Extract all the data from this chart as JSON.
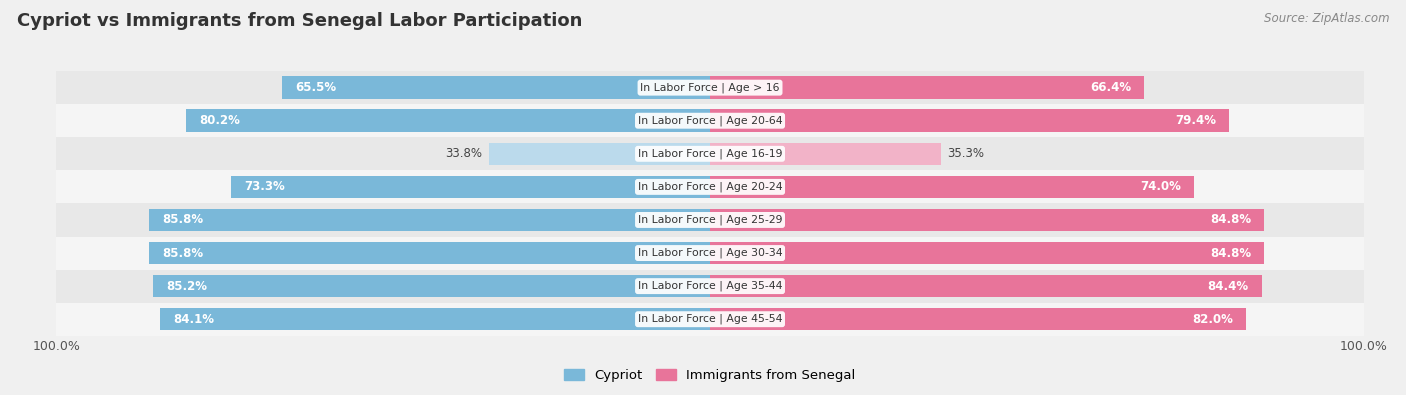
{
  "title": "Cypriot vs Immigrants from Senegal Labor Participation",
  "source": "Source: ZipAtlas.com",
  "categories": [
    "In Labor Force | Age > 16",
    "In Labor Force | Age 20-64",
    "In Labor Force | Age 16-19",
    "In Labor Force | Age 20-24",
    "In Labor Force | Age 25-29",
    "In Labor Force | Age 30-34",
    "In Labor Force | Age 35-44",
    "In Labor Force | Age 45-54"
  ],
  "cypriot_values": [
    65.5,
    80.2,
    33.8,
    73.3,
    85.8,
    85.8,
    85.2,
    84.1
  ],
  "senegal_values": [
    66.4,
    79.4,
    35.3,
    74.0,
    84.8,
    84.8,
    84.4,
    82.0
  ],
  "cypriot_color": "#7AB8D9",
  "cypriot_color_light": "#BBDAEC",
  "senegal_color": "#E8749A",
  "senegal_color_light": "#F2B3C8",
  "bar_height": 0.68,
  "bg_color": "#f0f0f0",
  "row_color_odd": "#e8e8e8",
  "row_color_even": "#f5f5f5",
  "max_val": 100.0,
  "legend_labels": [
    "Cypriot",
    "Immigrants from Senegal"
  ]
}
